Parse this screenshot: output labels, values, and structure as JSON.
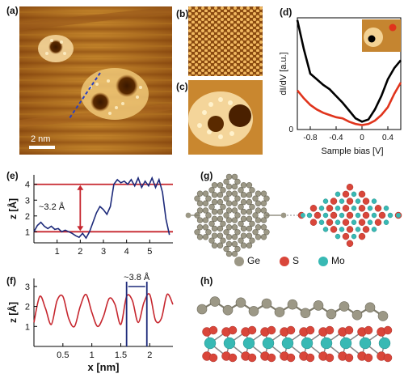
{
  "figure": {
    "panel_labels": {
      "a": "(a)",
      "b": "(b)",
      "c": "(c)",
      "d": "(d)",
      "e": "(e)",
      "f": "(f)",
      "g": "(g)",
      "h": "(h)"
    },
    "scale_bar": "2 nm",
    "legend": {
      "ge": "Ge",
      "s": "S",
      "mo": "Mo"
    },
    "colors": {
      "ge": "#9c9886",
      "s": "#d9463a",
      "mo": "#38b9b4",
      "stm_dark": "#5a2a00",
      "stm_light": "#f6d58c"
    }
  },
  "chart_data": [
    {
      "id": "d",
      "type": "line",
      "xlabel": "Sample bias [V]",
      "ylabel": "dI/dV [a.u.]",
      "x_ticks": [
        "-0.8",
        "-0.4",
        "0",
        "0.4"
      ],
      "y_ticks": [
        "0"
      ],
      "xlim": [
        -1.0,
        0.6
      ],
      "ylim": [
        0,
        1
      ],
      "series": [
        {
          "color": "#000000",
          "x": [
            -1.0,
            -0.9,
            -0.8,
            -0.7,
            -0.6,
            -0.5,
            -0.4,
            -0.3,
            -0.2,
            -0.1,
            0.0,
            0.1,
            0.2,
            0.3,
            0.4,
            0.5,
            0.6
          ],
          "y": [
            0.98,
            0.72,
            0.5,
            0.45,
            0.4,
            0.36,
            0.3,
            0.24,
            0.17,
            0.1,
            0.07,
            0.09,
            0.18,
            0.3,
            0.45,
            0.55,
            0.62
          ]
        },
        {
          "color": "#e0341c",
          "x": [
            -1.0,
            -0.9,
            -0.8,
            -0.7,
            -0.6,
            -0.5,
            -0.4,
            -0.3,
            -0.2,
            -0.1,
            0.0,
            0.1,
            0.2,
            0.3,
            0.4,
            0.5,
            0.6
          ],
          "y": [
            0.35,
            0.28,
            0.22,
            0.18,
            0.15,
            0.13,
            0.11,
            0.1,
            0.07,
            0.05,
            0.04,
            0.05,
            0.08,
            0.13,
            0.2,
            0.32,
            0.42
          ]
        }
      ]
    },
    {
      "id": "e",
      "type": "line",
      "xlabel": "",
      "ylabel": "z [Å]",
      "x_ticks": [
        "1",
        "2",
        "3",
        "4",
        "5"
      ],
      "y_ticks": [
        "1",
        "2",
        "3",
        "4"
      ],
      "xlim": [
        0,
        6
      ],
      "ylim": [
        0.3,
        4.6
      ],
      "annotation": "~3.2 Å",
      "ref_lines": [
        1.0,
        4.0
      ],
      "series": [
        {
          "color": "#1d2a7a",
          "x": [
            0.0,
            0.15,
            0.3,
            0.45,
            0.6,
            0.75,
            0.9,
            1.05,
            1.2,
            1.35,
            1.5,
            1.65,
            1.8,
            1.95,
            2.1,
            2.25,
            2.4,
            2.55,
            2.7,
            2.85,
            3.0,
            3.15,
            3.3,
            3.45,
            3.6,
            3.75,
            3.9,
            4.05,
            4.2,
            4.35,
            4.5,
            4.65,
            4.8,
            4.95,
            5.1,
            5.25,
            5.4,
            5.55,
            5.7,
            5.85
          ],
          "y": [
            1.0,
            1.4,
            1.6,
            1.35,
            1.2,
            1.35,
            1.15,
            1.2,
            1.0,
            1.1,
            1.0,
            0.9,
            0.75,
            0.65,
            0.9,
            0.6,
            1.0,
            1.6,
            2.2,
            2.6,
            2.4,
            2.1,
            2.6,
            4.0,
            4.3,
            4.1,
            4.2,
            4.0,
            4.3,
            3.9,
            4.4,
            3.8,
            4.2,
            3.9,
            4.4,
            3.8,
            4.3,
            3.5,
            1.8,
            0.8
          ]
        }
      ]
    },
    {
      "id": "f",
      "type": "line",
      "xlabel": "x [nm]",
      "ylabel": "z [Å]",
      "x_ticks": [
        "0.5",
        "1",
        "1.5",
        "2"
      ],
      "y_ticks": [
        "1",
        "2",
        "3"
      ],
      "xlim": [
        0,
        2.4
      ],
      "ylim": [
        0,
        3.4
      ],
      "annotation": "~3.8 Å",
      "markers": [
        1.6,
        1.95
      ],
      "series": [
        {
          "color": "#c6262e",
          "x": [
            0.0,
            0.1,
            0.2,
            0.3,
            0.4,
            0.5,
            0.6,
            0.7,
            0.8,
            0.9,
            1.0,
            1.1,
            1.2,
            1.3,
            1.4,
            1.5,
            1.6,
            1.7,
            1.8,
            1.9,
            2.0,
            2.1,
            2.2,
            2.3,
            2.4
          ],
          "y": [
            1.2,
            2.5,
            1.9,
            1.1,
            2.3,
            2.5,
            1.4,
            1.0,
            2.0,
            2.6,
            1.7,
            1.0,
            1.5,
            2.4,
            2.1,
            1.1,
            2.5,
            2.3,
            1.2,
            2.2,
            2.6,
            1.3,
            1.4,
            2.6,
            2.1
          ]
        }
      ]
    }
  ]
}
